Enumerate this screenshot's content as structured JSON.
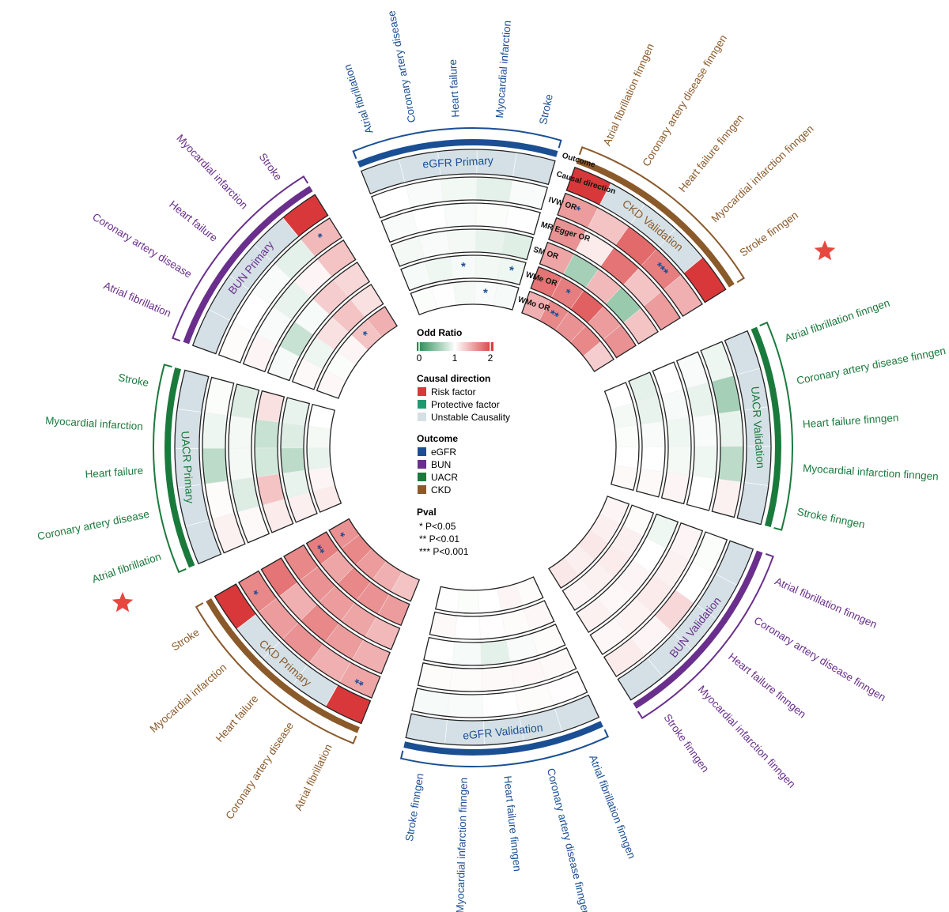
{
  "chart_data": {
    "type": "heatmap",
    "subtype": "circular",
    "rings": [
      "Causal direction",
      "IVW OR",
      "MR Egger OR",
      "SM OR",
      "WMe OR",
      "WMo OR"
    ],
    "outcome_ring_label": "Outcome",
    "colors": {
      "risk": "#d9383a",
      "protective": "#1f9a70",
      "unstable": "#d4e0e6",
      "eGFR": "#1b4f94",
      "BUN": "#6a2f8c",
      "UACR": "#1a7a3c",
      "CKD": "#8b5a2b"
    },
    "legend": {
      "or_title": "Odd Ratio",
      "or_scale": {
        "min": 0,
        "mid": 1,
        "max": 2,
        "ticks": [
          "0",
          "1",
          "2"
        ]
      },
      "causal_title": "Causal direction",
      "causal_items": [
        {
          "label": "Risk factor",
          "key": "risk"
        },
        {
          "label": "Protective factor",
          "key": "protective"
        },
        {
          "label": "Unstable Causality",
          "key": "unstable"
        }
      ],
      "outcome_title": "Outcome",
      "outcome_items": [
        {
          "label": "eGFR",
          "key": "eGFR"
        },
        {
          "label": "BUN",
          "key": "BUN"
        },
        {
          "label": "UACR",
          "key": "UACR"
        },
        {
          "label": "CKD",
          "key": "CKD"
        }
      ],
      "pval_title": "Pval",
      "pval_items": [
        "* P<0.05",
        "** P<0.01",
        "*** P<0.001"
      ]
    },
    "sectors": [
      {
        "title": "eGFR  Primary",
        "outcome": "eGFR",
        "rows": [
          {
            "label": "Atrial fibrillation",
            "dir": "unstable",
            "or": [
              1.0,
              0.97,
              0.95,
              0.96,
              0.98
            ],
            "sig": [
              "",
              "",
              "",
              "",
              ""
            ]
          },
          {
            "label": "Coronary artery disease",
            "dir": "unstable",
            "or": [
              0.97,
              1.0,
              0.97,
              0.93,
              0.99
            ],
            "sig": [
              "",
              "",
              "",
              "",
              ""
            ]
          },
          {
            "label": "Heart failure",
            "dir": "unstable",
            "or": [
              0.94,
              0.97,
              0.95,
              0.96,
              0.95
            ],
            "sig": [
              "",
              "",
              "",
              "*",
              ""
            ]
          },
          {
            "label": "Myocardial infarction",
            "dir": "unstable",
            "or": [
              0.88,
              0.98,
              0.9,
              0.94,
              0.97
            ],
            "sig": [
              "",
              "",
              "",
              "",
              "*"
            ]
          },
          {
            "label": "Stroke",
            "dir": "unstable",
            "or": [
              0.97,
              0.99,
              0.86,
              0.93,
              0.96
            ],
            "sig": [
              "",
              "",
              "",
              "*",
              ""
            ]
          }
        ]
      },
      {
        "title": "CKD  Validation",
        "outcome": "CKD",
        "rows": [
          {
            "label": "Atrial fibrillation finngen",
            "dir": "risk",
            "or": [
              1.5,
              1.55,
              1.45,
              1.7,
              1.4
            ],
            "sig": [
              "*",
              "",
              "",
              "",
              ""
            ]
          },
          {
            "label": "Coronary artery disease finngen",
            "dir": "unstable",
            "or": [
              1.3,
              1.1,
              0.6,
              1.65,
              1.6
            ],
            "sig": [
              "",
              "",
              "",
              "*",
              "**"
            ]
          },
          {
            "label": "Heart failure finngen",
            "dir": "unstable",
            "or": [
              1.75,
              1.7,
              1.35,
              1.8,
              1.55
            ],
            "sig": [
              "",
              "",
              "",
              "",
              ""
            ]
          },
          {
            "label": "Myocardial infarction finngen",
            "dir": "unstable",
            "or": [
              1.65,
              1.3,
              0.55,
              1.5,
              1.6
            ],
            "sig": [
              "***",
              "",
              "",
              "",
              ""
            ]
          },
          {
            "label": "Stroke finngen",
            "dir": "risk",
            "or": [
              1.4,
              1.5,
              1.3,
              1.55,
              1.25
            ],
            "sig": [
              "",
              "",
              "",
              "",
              ""
            ]
          }
        ]
      },
      {
        "title": "UACR  Validation",
        "outcome": "UACR",
        "rows": [
          {
            "label": "Atrial fibrillation finngen",
            "dir": "unstable",
            "or": [
              0.92,
              0.97,
              1.0,
              0.88,
              1.0
            ],
            "sig": [
              "",
              "",
              "",
              "",
              ""
            ]
          },
          {
            "label": "Coronary artery disease finngen",
            "dir": "unstable",
            "or": [
              0.6,
              0.9,
              0.96,
              0.9,
              0.95
            ],
            "sig": [
              "",
              "",
              "",
              "",
              ""
            ]
          },
          {
            "label": "Heart failure finngen",
            "dir": "unstable",
            "or": [
              0.9,
              0.97,
              0.93,
              0.97,
              0.98
            ],
            "sig": [
              "",
              "",
              "",
              "",
              ""
            ]
          },
          {
            "label": "Myocardial infarction finngen",
            "dir": "unstable",
            "or": [
              0.7,
              0.93,
              0.95,
              1.0,
              1.0
            ],
            "sig": [
              "",
              "",
              "",
              "",
              ""
            ]
          },
          {
            "label": "Stroke finngen",
            "dir": "unstable",
            "or": [
              1.07,
              1.0,
              1.05,
              1.03,
              1.03
            ],
            "sig": [
              "",
              "",
              "",
              "",
              ""
            ]
          }
        ]
      },
      {
        "title": "BUN  Validation",
        "outcome": "BUN",
        "rows": [
          {
            "label": "Atrial fibrillation finngen",
            "dir": "unstable",
            "or": [
              0.98,
              1.05,
              0.93,
              1.02,
              1.05
            ],
            "sig": [
              "",
              "",
              "",
              "",
              ""
            ]
          },
          {
            "label": "Coronary artery disease finngen",
            "dir": "unstable",
            "or": [
              1.0,
              1.07,
              1.0,
              1.08,
              1.08
            ],
            "sig": [
              "",
              "",
              "",
              "",
              ""
            ]
          },
          {
            "label": "Heart failure finngen",
            "dir": "unstable",
            "or": [
              1.2,
              1.1,
              1.05,
              1.1,
              1.12
            ],
            "sig": [
              "",
              "",
              "",
              "",
              ""
            ]
          },
          {
            "label": "Myocardial infarction finngen",
            "dir": "unstable",
            "or": [
              1.05,
              1.06,
              1.04,
              1.07,
              1.08
            ],
            "sig": [
              "",
              "",
              "",
              "",
              ""
            ]
          },
          {
            "label": "Stroke finngen",
            "dir": "unstable",
            "or": [
              1.1,
              1.04,
              1.07,
              1.05,
              1.12
            ],
            "sig": [
              "",
              "",
              "",
              "",
              ""
            ]
          }
        ]
      },
      {
        "title": "eGFR  Validation",
        "outcome": "eGFR",
        "rows": [
          {
            "label": "Atrial fibrillation finngen",
            "dir": "unstable",
            "or": [
              1.01,
              1.03,
              1.02,
              1.04,
              1.02
            ],
            "sig": [
              "",
              "",
              "",
              "",
              ""
            ]
          },
          {
            "label": "Coronary artery disease finngen",
            "dir": "unstable",
            "or": [
              1.02,
              1.04,
              0.97,
              1.02,
              1.05
            ],
            "sig": [
              "",
              "",
              "",
              "",
              ""
            ]
          },
          {
            "label": "Heart failure finngen",
            "dir": "unstable",
            "or": [
              1.0,
              1.03,
              0.88,
              1.01,
              1.0
            ],
            "sig": [
              "",
              "",
              "",
              "",
              ""
            ]
          },
          {
            "label": "Myocardial infarction finngen",
            "dir": "unstable",
            "or": [
              0.97,
              1.02,
              0.96,
              1.0,
              0.98
            ],
            "sig": [
              "",
              "",
              "",
              "",
              ""
            ]
          },
          {
            "label": "Stroke finngen",
            "dir": "unstable",
            "or": [
              0.96,
              1.02,
              1.0,
              1.03,
              0.99
            ],
            "sig": [
              "",
              "",
              "",
              "",
              ""
            ]
          }
        ]
      },
      {
        "title": "CKD  Primary",
        "outcome": "CKD",
        "rows": [
          {
            "label": "Atrial fibrillation",
            "dir": "risk",
            "or": [
              1.45,
              1.4,
              1.35,
              1.5,
              1.3
            ],
            "sig": [
              "**",
              "",
              "",
              "",
              ""
            ]
          },
          {
            "label": "Coronary artery disease",
            "dir": "unstable",
            "or": [
              1.4,
              1.5,
              1.45,
              1.55,
              1.4
            ],
            "sig": [
              "",
              "",
              "",
              "",
              ""
            ]
          },
          {
            "label": "Heart failure",
            "dir": "unstable",
            "or": [
              1.55,
              1.6,
              1.5,
              1.6,
              1.5
            ],
            "sig": [
              "",
              "",
              "",
              "",
              ""
            ]
          },
          {
            "label": "Myocardial infarction",
            "dir": "unstable",
            "or": [
              1.5,
              1.4,
              1.55,
              1.45,
              1.6
            ],
            "sig": [
              "",
              "",
              "",
              "",
              ""
            ]
          },
          {
            "label": "Stroke",
            "dir": "risk",
            "or": [
              1.6,
              1.7,
              1.6,
              1.65,
              1.55
            ],
            "sig": [
              "*",
              "",
              "",
              "**",
              "*"
            ]
          }
        ]
      },
      {
        "title": "UACR  Primary",
        "outcome": "UACR",
        "rows": [
          {
            "label": "Atrial fibrillation",
            "dir": "unstable",
            "or": [
              1.07,
              1.03,
              1.1,
              1.08,
              1.1
            ],
            "sig": [
              "",
              "",
              "",
              "",
              ""
            ]
          },
          {
            "label": "Coronary artery disease",
            "dir": "unstable",
            "or": [
              1.02,
              0.85,
              1.3,
              0.9,
              1.05
            ],
            "sig": [
              "",
              "",
              "",
              "",
              ""
            ]
          },
          {
            "label": "Heart failure",
            "dir": "unstable",
            "or": [
              0.7,
              0.95,
              0.8,
              0.7,
              0.9
            ],
            "sig": [
              "",
              "",
              "",
              "",
              ""
            ]
          },
          {
            "label": "Myocardial infarction",
            "dir": "unstable",
            "or": [
              0.92,
              0.95,
              0.75,
              0.85,
              0.95
            ],
            "sig": [
              "",
              "",
              "",
              "",
              ""
            ]
          },
          {
            "label": "Stroke",
            "dir": "unstable",
            "or": [
              0.98,
              0.85,
              1.15,
              0.9,
              1.0
            ],
            "sig": [
              "",
              "",
              "",
              "",
              ""
            ]
          }
        ]
      },
      {
        "title": "BUN  Primary",
        "outcome": "BUN",
        "rows": [
          {
            "label": "Atrial fibrillation",
            "dir": "unstable",
            "or": [
              1.02,
              1.05,
              0.96,
              1.03,
              1.04
            ],
            "sig": [
              "",
              "",
              "",
              "",
              ""
            ]
          },
          {
            "label": "Coronary artery disease",
            "dir": "unstable",
            "or": [
              1.0,
              0.97,
              0.75,
              0.92,
              0.98
            ],
            "sig": [
              "",
              "",
              "",
              "",
              ""
            ]
          },
          {
            "label": "Heart failure",
            "dir": "unstable",
            "or": [
              0.97,
              0.9,
              0.96,
              1.15,
              1.05
            ],
            "sig": [
              "",
              "",
              "",
              "",
              ""
            ]
          },
          {
            "label": "Myocardial infarction",
            "dir": "unstable",
            "or": [
              0.88,
              1.05,
              1.25,
              1.3,
              1.3
            ],
            "sig": [
              "",
              "",
              "",
              "",
              "*"
            ]
          },
          {
            "label": "Stroke",
            "dir": "risk",
            "or": [
              1.35,
              1.3,
              1.2,
              1.15,
              1.4
            ],
            "sig": [
              "*",
              "",
              "",
              "",
              ""
            ]
          }
        ]
      }
    ]
  }
}
